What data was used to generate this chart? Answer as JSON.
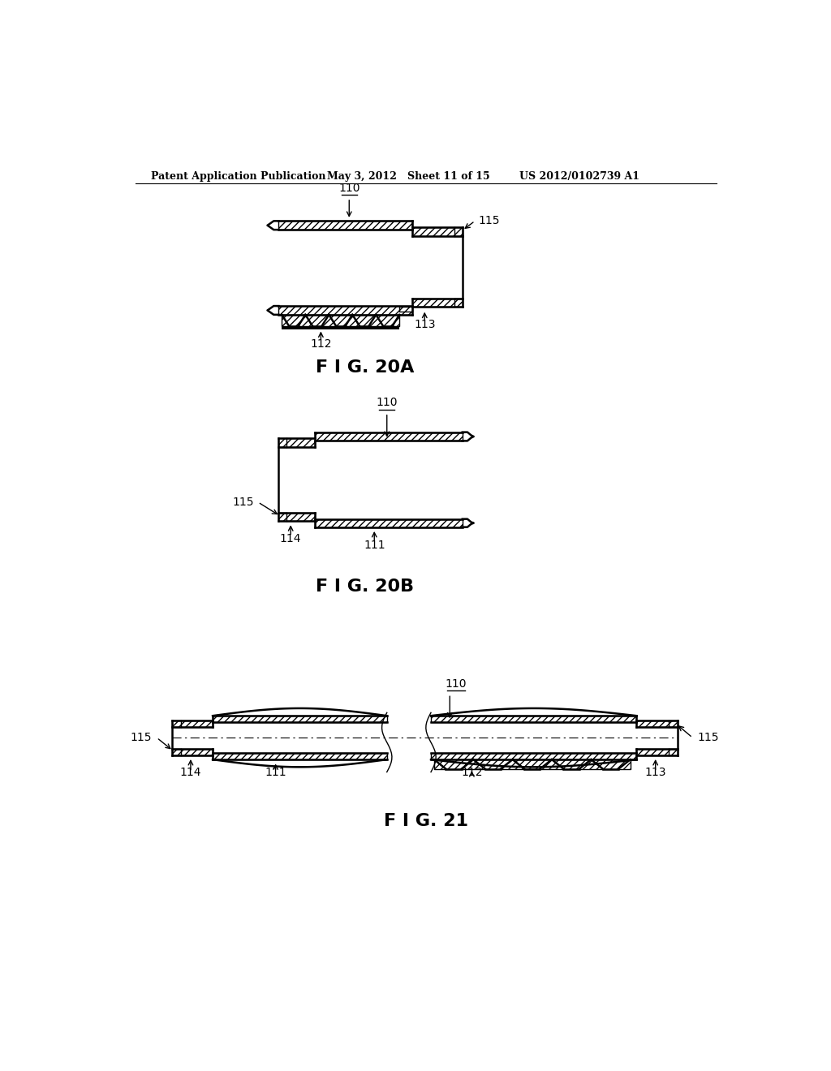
{
  "bg_color": "#ffffff",
  "text_color": "#000000",
  "header_left": "Patent Application Publication",
  "header_mid": "May 3, 2012   Sheet 11 of 15",
  "header_right": "US 2012/0102739 A1",
  "fig20a_label": "F I G. 20A",
  "fig20b_label": "F I G. 20B",
  "fig21_label": "F I G. 21",
  "line_color": "#000000"
}
